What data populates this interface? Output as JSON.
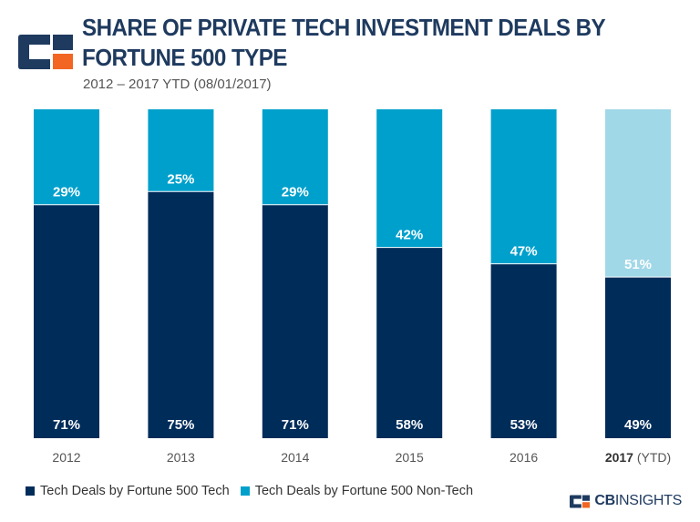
{
  "header": {
    "title": "SHARE OF PRIVATE TECH INVESTMENT DEALS BY FORTUNE 500 TYPE",
    "subtitle": "2012 – 2017 YTD (08/01/2017)"
  },
  "brand": {
    "bold": "CB",
    "light": "INSIGHTS"
  },
  "colors": {
    "tech": "#002c5a",
    "non_tech": "#00a0cc",
    "non_tech_ytd": "#a0d8e8",
    "logo_navy": "#1e3a5f",
    "logo_orange": "#f26522"
  },
  "chart_data": {
    "type": "bar",
    "stacked": true,
    "normalized": true,
    "categories": [
      "2012",
      "2013",
      "2014",
      "2015",
      "2016",
      "2017"
    ],
    "category_suffixes": [
      "",
      "",
      "",
      "",
      "",
      "(YTD)"
    ],
    "series": [
      {
        "name": "Tech Deals by Fortune 500 Tech",
        "values": [
          71,
          75,
          71,
          58,
          53,
          49
        ],
        "labels": [
          "71%",
          "75%",
          "71%",
          "58%",
          "53%",
          "49%"
        ]
      },
      {
        "name": "Tech Deals by Fortune 500 Non-Tech",
        "values": [
          29,
          25,
          29,
          42,
          47,
          51
        ],
        "labels": [
          "29%",
          "25%",
          "29%",
          "42%",
          "47%",
          "51%"
        ]
      }
    ],
    "ylim": [
      0,
      100
    ],
    "unit": "%",
    "grid": false,
    "legend": "bottom-left"
  }
}
